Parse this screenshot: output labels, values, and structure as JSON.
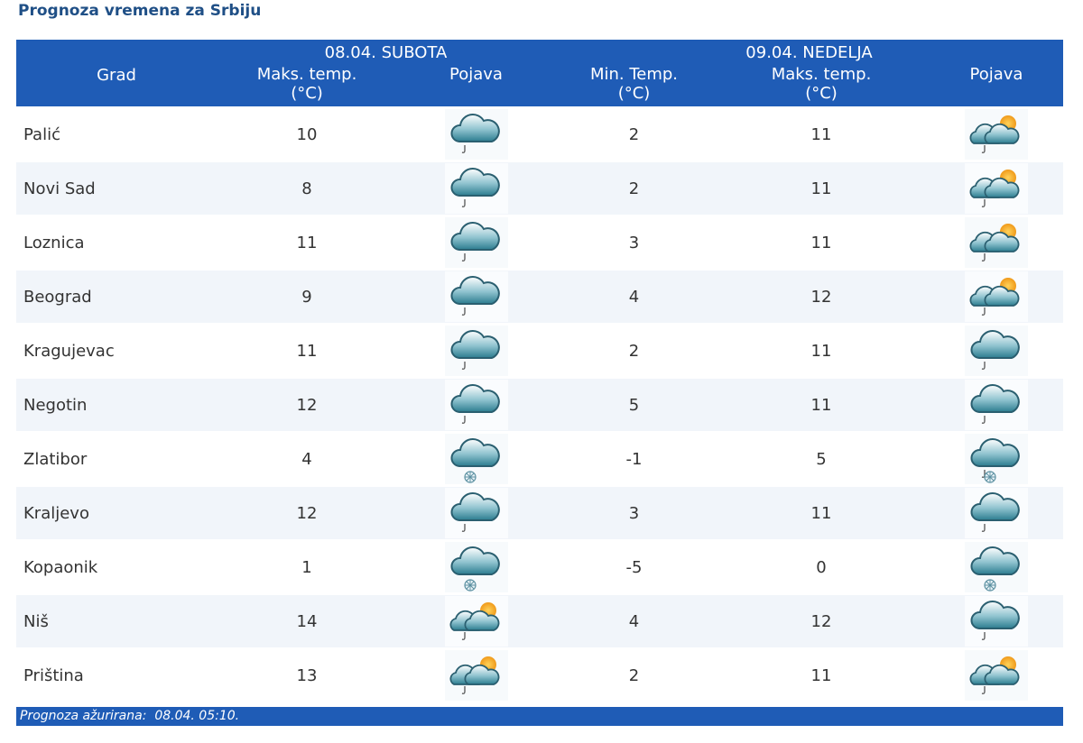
{
  "title": "Prognoza vremena za Srbiju",
  "table": {
    "day_headers": [
      "08.04. SUBOTA",
      "09.04. NEDELJA"
    ],
    "columns": [
      "Grad",
      "Maks. temp.\n(°C)",
      "Pojava",
      "Min. Temp.\n(°C)",
      "Maks. temp.\n(°C)",
      "Pojava"
    ],
    "rows": [
      [
        "Palić",
        10,
        2,
        11
      ],
      [
        "Novi Sad",
        8,
        2,
        11
      ],
      [
        "Loznica",
        11,
        3,
        11
      ],
      [
        "Beograd",
        9,
        4,
        12
      ],
      [
        "Kragujevac",
        11,
        2,
        11
      ],
      [
        "Negotin",
        12,
        5,
        11
      ],
      [
        "Zlatibor",
        4,
        -1,
        5
      ],
      [
        "Kraljevo",
        12,
        3,
        11
      ],
      [
        "Kopaonik",
        1,
        -5,
        0
      ],
      [
        "Niš",
        14,
        4,
        12
      ],
      [
        "Priština",
        13,
        2,
        11
      ]
    ]
  },
  "footer": "Prognoza ažurirana:  08.04. 05:10."
}
